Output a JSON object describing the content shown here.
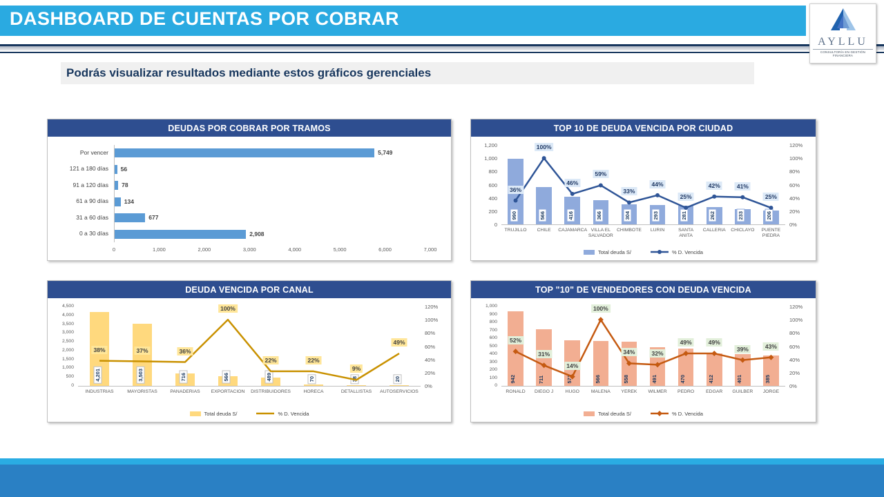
{
  "header": {
    "title": "DASHBOARD DE CUENTAS POR COBRAR"
  },
  "logo": {
    "name": "AYLLU",
    "caption": "CONSULTORÍA EN GESTIÓN FINANCIERA"
  },
  "subtitle": {
    "text": "Podrás visualizar resultados mediante estos gráficos gerenciales"
  },
  "colors": {
    "header_cyan": "#2AAAE1",
    "navy": "#17365D",
    "panel_header": "#2E4E90",
    "footer_strip": "#2AACE3",
    "footer_band": "#2A80C4",
    "subtitle_bg": "#F0F0F0"
  },
  "chart_data": [
    {
      "type": "bar",
      "orientation": "horizontal",
      "title": "DEUDAS POR COBRAR POR TRAMOS",
      "categories": [
        "Por vencer",
        "121 a 180 días",
        "91 a 120 días",
        "61 a 90 días",
        "31 a 60 días",
        "0 a 30 días"
      ],
      "values": [
        5749,
        56,
        78,
        134,
        677,
        2908
      ],
      "value_labels": [
        "5,749",
        "56",
        "78",
        "134",
        "677",
        "2,908"
      ],
      "xlim": [
        0,
        7000
      ],
      "x_ticks": [
        "0",
        "1,000",
        "2,000",
        "3,000",
        "4,000",
        "5,000",
        "6,000",
        "7,000"
      ],
      "style": {
        "bar": "#5B9BD5"
      }
    },
    {
      "type": "combo",
      "title": "TOP 10 DE DEUDA VENCIDA POR CIUDAD",
      "categories": [
        "TRUJILLO",
        "CHILE",
        "CAJAMARCA",
        "VILLA EL SALVADOR",
        "CHIMBOTE",
        "LURIN",
        "SANTA ANITA",
        "CALLERIA",
        "CHICLAYO",
        "PUENTE PIEDRA"
      ],
      "series": [
        {
          "name": "Total deuda S/",
          "type": "bar",
          "values": [
            990,
            566,
            416,
            366,
            304,
            293,
            281,
            262,
            233,
            206
          ],
          "labels": [
            "990",
            "566",
            "416",
            "366",
            "304",
            "293",
            "281",
            "262",
            "233",
            "206"
          ]
        },
        {
          "name": "% D. Vencida",
          "type": "line",
          "values": [
            36,
            100,
            46,
            59,
            33,
            44,
            25,
            42,
            41,
            25
          ],
          "labels": [
            "36%",
            "100%",
            "46%",
            "59%",
            "33%",
            "44%",
            "25%",
            "42%",
            "41%",
            "25%"
          ]
        }
      ],
      "left_axis": {
        "max": 1200,
        "ticks": [
          "0",
          "200",
          "400",
          "600",
          "800",
          "1,000",
          "1,200"
        ]
      },
      "right_axis": {
        "max": 120,
        "ticks": [
          "0%",
          "20%",
          "40%",
          "60%",
          "80%",
          "100%",
          "120%"
        ]
      },
      "style": {
        "bar": "#8FAADC",
        "line": "#2F5597",
        "marker": "circle",
        "pct_bg": "#DCE9F7",
        "pct_color": "#1F3864",
        "value_box": true,
        "value_border": "#8FAADC"
      }
    },
    {
      "type": "combo",
      "title": "DEUDA VENCIDA POR CANAL",
      "categories": [
        "INDUSTRIAS",
        "MAYORISTAS",
        "PANADERIAS",
        "EXPORTACION",
        "DISTRIBUIDORES",
        "HORECA",
        "DETALLISTAS",
        "AUTOSERVICIOS"
      ],
      "series": [
        {
          "name": "Total deuda S/",
          "type": "bar",
          "values": [
            4201,
            3503,
            716,
            566,
            489,
            70,
            38,
            20
          ],
          "labels": [
            "4,201",
            "3,503",
            "716",
            "566",
            "489",
            "70",
            "38",
            "20"
          ]
        },
        {
          "name": "% D. Vencida",
          "type": "line",
          "values": [
            38,
            37,
            36,
            100,
            22,
            22,
            9,
            49
          ],
          "labels": [
            "38%",
            "37%",
            "36%",
            "100%",
            "22%",
            "22%",
            "9%",
            "49%"
          ]
        }
      ],
      "left_axis": {
        "max": 4500,
        "ticks": [
          "0",
          "500",
          "1,000",
          "1,500",
          "2,000",
          "2,500",
          "3,000",
          "3,500",
          "4,000",
          "4,500"
        ]
      },
      "right_axis": {
        "max": 120,
        "ticks": [
          "0%",
          "20%",
          "40%",
          "60%",
          "80%",
          "100%",
          "120%"
        ]
      },
      "style": {
        "bar": "#FFD97E",
        "line": "#C99100",
        "marker": "none",
        "pct_bg": "#FFE699",
        "pct_color": "#404040",
        "value_box": true,
        "value_border": "#BFBFBF"
      }
    },
    {
      "type": "combo",
      "title": "TOP \"10\" DE VENDEDORES CON DEUDA VENCIDA",
      "categories": [
        "RONALD",
        "DIEGO J",
        "HUGO",
        "MALENA",
        "YEREK",
        "WILMER",
        "PEDRO",
        "EDGAR",
        "GUILBER",
        "JORGE"
      ],
      "series": [
        {
          "name": "Total deuda S/",
          "type": "bar",
          "values": [
            942,
            711,
            571,
            566,
            558,
            491,
            470,
            412,
            401,
            385
          ],
          "labels": [
            "942",
            "711",
            "571",
            "566",
            "558",
            "491",
            "470",
            "412",
            "401",
            "385"
          ]
        },
        {
          "name": "% D. Vencida",
          "type": "line",
          "values": [
            52,
            31,
            14,
            100,
            34,
            32,
            49,
            49,
            39,
            43
          ],
          "labels": [
            "52%",
            "31%",
            "14%",
            "100%",
            "34%",
            "32%",
            "49%",
            "49%",
            "39%",
            "43%"
          ]
        }
      ],
      "left_axis": {
        "max": 1000,
        "ticks": [
          "0",
          "100",
          "200",
          "300",
          "400",
          "500",
          "600",
          "700",
          "800",
          "900",
          "1,000"
        ]
      },
      "right_axis": {
        "max": 120,
        "ticks": [
          "0%",
          "20%",
          "40%",
          "60%",
          "80%",
          "100%",
          "120%"
        ]
      },
      "style": {
        "bar": "#F2AE92",
        "line": "#C55A11",
        "marker": "diamond",
        "pct_bg": "#E2EFDA",
        "pct_color": "#404040",
        "value_box": false,
        "value_border": "none"
      }
    }
  ]
}
